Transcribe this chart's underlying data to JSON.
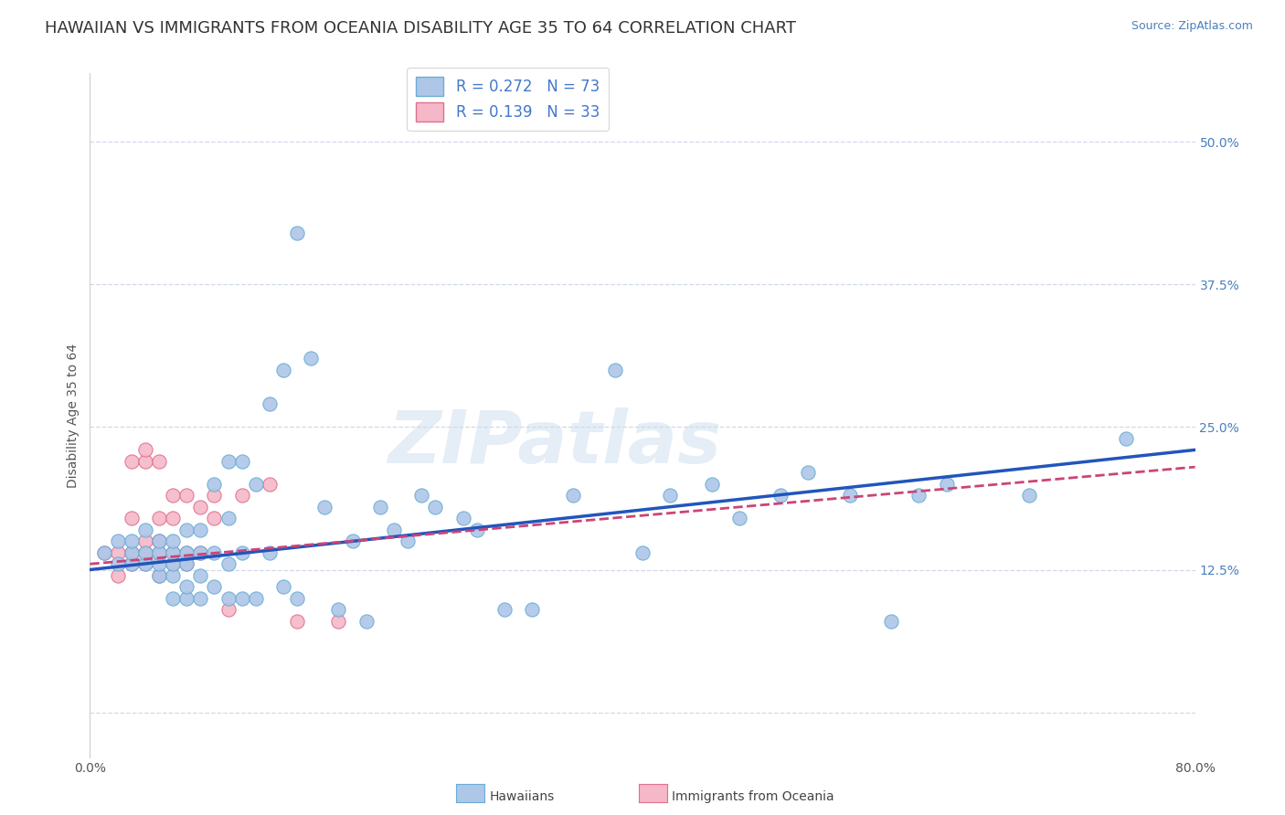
{
  "title": "HAWAIIAN VS IMMIGRANTS FROM OCEANIA DISABILITY AGE 35 TO 64 CORRELATION CHART",
  "source": "Source: ZipAtlas.com",
  "ylabel": "Disability Age 35 to 64",
  "ytick_labels": [
    "",
    "12.5%",
    "25.0%",
    "37.5%",
    "50.0%"
  ],
  "ytick_values": [
    0.0,
    0.125,
    0.25,
    0.375,
    0.5
  ],
  "xlim": [
    0.0,
    0.8
  ],
  "ylim": [
    -0.04,
    0.56
  ],
  "watermark": "ZIPatlas",
  "hawaiian_color": "#aec6e8",
  "hawaiian_edge": "#6aaed6",
  "oceania_color": "#f4b8c8",
  "oceania_edge": "#e07090",
  "hawaiian_line_color": "#2255bb",
  "oceania_line_color": "#cc4477",
  "legend_label1": "R = 0.272   N = 73",
  "legend_label2": "R = 0.139   N = 33",
  "legend_text_color": "#4477cc",
  "hawaiian_x": [
    0.01,
    0.02,
    0.02,
    0.03,
    0.03,
    0.03,
    0.04,
    0.04,
    0.04,
    0.05,
    0.05,
    0.05,
    0.05,
    0.06,
    0.06,
    0.06,
    0.06,
    0.06,
    0.07,
    0.07,
    0.07,
    0.07,
    0.07,
    0.08,
    0.08,
    0.08,
    0.08,
    0.09,
    0.09,
    0.09,
    0.1,
    0.1,
    0.1,
    0.1,
    0.11,
    0.11,
    0.11,
    0.12,
    0.12,
    0.13,
    0.13,
    0.14,
    0.14,
    0.15,
    0.15,
    0.16,
    0.17,
    0.18,
    0.19,
    0.2,
    0.21,
    0.22,
    0.23,
    0.24,
    0.25,
    0.27,
    0.28,
    0.3,
    0.32,
    0.35,
    0.38,
    0.4,
    0.42,
    0.45,
    0.47,
    0.5,
    0.52,
    0.55,
    0.58,
    0.6,
    0.62,
    0.68,
    0.75
  ],
  "hawaiian_y": [
    0.14,
    0.13,
    0.15,
    0.13,
    0.14,
    0.15,
    0.13,
    0.14,
    0.16,
    0.12,
    0.13,
    0.14,
    0.15,
    0.1,
    0.12,
    0.13,
    0.14,
    0.15,
    0.1,
    0.11,
    0.13,
    0.14,
    0.16,
    0.1,
    0.12,
    0.14,
    0.16,
    0.11,
    0.14,
    0.2,
    0.1,
    0.13,
    0.17,
    0.22,
    0.1,
    0.14,
    0.22,
    0.1,
    0.2,
    0.14,
    0.27,
    0.11,
    0.3,
    0.1,
    0.42,
    0.31,
    0.18,
    0.09,
    0.15,
    0.08,
    0.18,
    0.16,
    0.15,
    0.19,
    0.18,
    0.17,
    0.16,
    0.09,
    0.09,
    0.19,
    0.3,
    0.14,
    0.19,
    0.2,
    0.17,
    0.19,
    0.21,
    0.19,
    0.08,
    0.19,
    0.2,
    0.19,
    0.24
  ],
  "oceania_x": [
    0.01,
    0.02,
    0.02,
    0.03,
    0.03,
    0.03,
    0.03,
    0.04,
    0.04,
    0.04,
    0.04,
    0.04,
    0.05,
    0.05,
    0.05,
    0.05,
    0.05,
    0.06,
    0.06,
    0.06,
    0.06,
    0.07,
    0.07,
    0.07,
    0.08,
    0.08,
    0.09,
    0.09,
    0.1,
    0.11,
    0.13,
    0.15,
    0.18
  ],
  "oceania_y": [
    0.14,
    0.12,
    0.14,
    0.13,
    0.14,
    0.17,
    0.22,
    0.13,
    0.14,
    0.15,
    0.22,
    0.23,
    0.12,
    0.14,
    0.15,
    0.17,
    0.22,
    0.13,
    0.14,
    0.17,
    0.19,
    0.13,
    0.14,
    0.19,
    0.14,
    0.18,
    0.17,
    0.19,
    0.09,
    0.19,
    0.2,
    0.08,
    0.08
  ],
  "background_color": "#ffffff",
  "grid_color": "#d0d8e8",
  "title_fontsize": 13,
  "axis_label_fontsize": 10,
  "tick_fontsize": 10,
  "source_fontsize": 9
}
